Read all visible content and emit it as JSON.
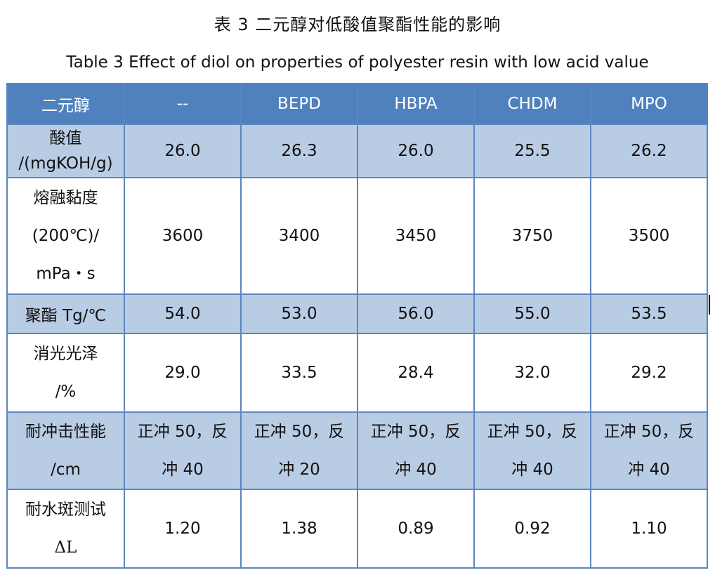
{
  "title_cn": "表 3  二元醇对低酸值聚酯性能的影响",
  "title_en": "Table 3 Effect of diol on properties of polyester resin with low acid value",
  "table": {
    "headers": [
      "二元醇",
      "--",
      "BEPD",
      "HBPA",
      "CHDM",
      "MPO"
    ],
    "rows": [
      {
        "label_lines": [
          "酸值",
          "/(mgKOH/g)"
        ],
        "values": [
          "26.0",
          "26.3",
          "26.0",
          "25.5",
          "26.2"
        ]
      },
      {
        "label_lines": [
          "熔融黏度",
          "(200℃)/",
          "mPa・s"
        ],
        "values": [
          "3600",
          "3400",
          "3450",
          "3750",
          "3500"
        ]
      },
      {
        "label_lines": [
          "聚酯 Tg/℃"
        ],
        "values": [
          "54.0",
          "53.0",
          "56.0",
          "55.0",
          "53.5"
        ]
      },
      {
        "label_lines": [
          "消光光泽",
          "/%"
        ],
        "values": [
          "29.0",
          "33.5",
          "28.4",
          "32.0",
          "29.2"
        ]
      },
      {
        "label_lines": [
          "耐冲击性能",
          "/cm"
        ],
        "values": [
          [
            "正冲 50，反",
            "冲 40"
          ],
          [
            "正冲 50，反",
            "冲 20"
          ],
          [
            "正冲 50，反",
            "冲 40"
          ],
          [
            "正冲 50，反",
            "冲 40"
          ],
          [
            "正冲 50，反",
            "冲 40"
          ]
        ]
      },
      {
        "label_lines": [
          "耐水斑测试",
          "ΔL"
        ],
        "values": [
          "1.20",
          "1.38",
          "0.89",
          "0.92",
          "1.10"
        ]
      }
    ]
  },
  "colors": {
    "header_bg": "#4f81bd",
    "shade_row_bg": "#b8cce4",
    "border": "#5b86bf"
  }
}
